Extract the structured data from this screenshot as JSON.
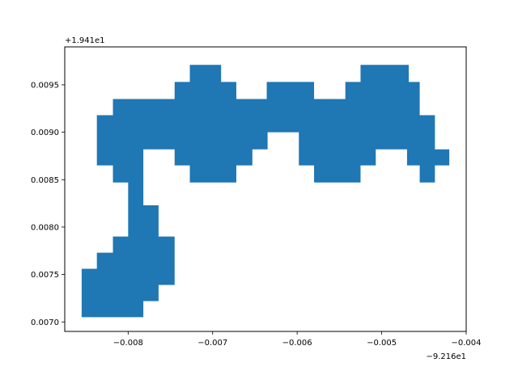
{
  "chart_data": {
    "type": "area",
    "title": "",
    "xlabel": "",
    "ylabel": "",
    "x_offset_label": "−9.216e1",
    "y_offset_label": "+1.941e1",
    "xlim": [
      -0.00875,
      -0.004
    ],
    "ylim": [
      0.0069,
      0.0099
    ],
    "x_ticks": [
      {
        "value": -0.008,
        "label": "−0.008"
      },
      {
        "value": -0.007,
        "label": "−0.007"
      },
      {
        "value": -0.006,
        "label": "−0.006"
      },
      {
        "value": -0.005,
        "label": "−0.005"
      },
      {
        "value": -0.004,
        "label": "−0.004"
      }
    ],
    "y_ticks": [
      {
        "value": 0.007,
        "label": "0.0070"
      },
      {
        "value": 0.0075,
        "label": "0.0075"
      },
      {
        "value": 0.008,
        "label": "0.0080"
      },
      {
        "value": 0.0085,
        "label": "0.0085"
      },
      {
        "value": 0.009,
        "label": "0.0090"
      },
      {
        "value": 0.0095,
        "label": "0.0095"
      }
    ],
    "grid": false,
    "fill_color": "#1f77b4",
    "polygon": [
      [
        -0.00855,
        0.00705
      ],
      [
        -0.00855,
        0.00756
      ],
      [
        -0.00837,
        0.00756
      ],
      [
        -0.00837,
        0.00773
      ],
      [
        -0.00818,
        0.00773
      ],
      [
        -0.00818,
        0.0079
      ],
      [
        -0.008,
        0.0079
      ],
      [
        -0.008,
        0.00823
      ],
      [
        -0.008,
        0.0084
      ],
      [
        -0.008,
        0.00847
      ],
      [
        -0.00818,
        0.00847
      ],
      [
        -0.00818,
        0.00865
      ],
      [
        -0.00837,
        0.00865
      ],
      [
        -0.00837,
        0.00918
      ],
      [
        -0.00818,
        0.00918
      ],
      [
        -0.00818,
        0.00935
      ],
      [
        -0.00745,
        0.00935
      ],
      [
        -0.00745,
        0.00953
      ],
      [
        -0.00727,
        0.00953
      ],
      [
        -0.00727,
        0.00971
      ],
      [
        -0.0069,
        0.00971
      ],
      [
        -0.0069,
        0.00953
      ],
      [
        -0.00672,
        0.00953
      ],
      [
        -0.00672,
        0.00935
      ],
      [
        -0.00636,
        0.00935
      ],
      [
        -0.00636,
        0.00953
      ],
      [
        -0.0058,
        0.00953
      ],
      [
        -0.0058,
        0.00935
      ],
      [
        -0.00543,
        0.00935
      ],
      [
        -0.00543,
        0.00953
      ],
      [
        -0.00525,
        0.00953
      ],
      [
        -0.00525,
        0.00971
      ],
      [
        -0.00468,
        0.00971
      ],
      [
        -0.00468,
        0.00953
      ],
      [
        -0.00455,
        0.00953
      ],
      [
        -0.00455,
        0.00918
      ],
      [
        -0.00437,
        0.00918
      ],
      [
        -0.00437,
        0.00882
      ],
      [
        -0.0042,
        0.00882
      ],
      [
        -0.0042,
        0.00865
      ],
      [
        -0.00437,
        0.00865
      ],
      [
        -0.00437,
        0.00847
      ],
      [
        -0.00455,
        0.00847
      ],
      [
        -0.00455,
        0.00865
      ],
      [
        -0.0047,
        0.00865
      ],
      [
        -0.0047,
        0.00882
      ],
      [
        -0.00507,
        0.00882
      ],
      [
        -0.00507,
        0.00865
      ],
      [
        -0.00525,
        0.00865
      ],
      [
        -0.00525,
        0.00847
      ],
      [
        -0.0058,
        0.00847
      ],
      [
        -0.0058,
        0.00865
      ],
      [
        -0.00598,
        0.00865
      ],
      [
        -0.00598,
        0.009
      ],
      [
        -0.00635,
        0.009
      ],
      [
        -0.00635,
        0.00882
      ],
      [
        -0.00653,
        0.00882
      ],
      [
        -0.00653,
        0.00865
      ],
      [
        -0.00672,
        0.00865
      ],
      [
        -0.00672,
        0.00847
      ],
      [
        -0.00727,
        0.00847
      ],
      [
        -0.00727,
        0.00865
      ],
      [
        -0.00745,
        0.00865
      ],
      [
        -0.00745,
        0.00882
      ],
      [
        -0.00782,
        0.00882
      ],
      [
        -0.00782,
        0.00865
      ],
      [
        -0.00782,
        0.00847
      ],
      [
        -0.00782,
        0.00823
      ],
      [
        -0.00764,
        0.00823
      ],
      [
        -0.00764,
        0.0079
      ],
      [
        -0.00745,
        0.0079
      ],
      [
        -0.00745,
        0.00739
      ],
      [
        -0.00764,
        0.00739
      ],
      [
        -0.00764,
        0.00722
      ],
      [
        -0.00782,
        0.00722
      ],
      [
        -0.00782,
        0.00705
      ]
    ]
  }
}
